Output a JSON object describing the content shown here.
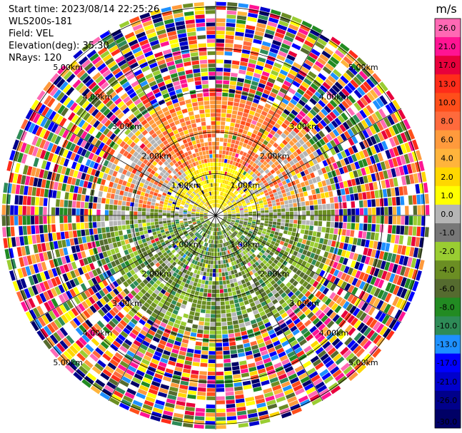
{
  "header": {
    "start_time": "Start time: 2023/08/14 22:25:26",
    "instrument": "WLS200s-181",
    "field": "Field: VEL",
    "elevation": "Elevation(deg): 35.30",
    "nrays": "NRays: 120"
  },
  "chart_data": {
    "type": "heatmap",
    "projection": "polar-ppi",
    "n_rays": 120,
    "range_rings_km": [
      1.0,
      2.0,
      3.0,
      4.0,
      5.0
    ],
    "ring_labels": [
      "1.00km",
      "2.00km",
      "3.00km",
      "4.00km",
      "5.00km"
    ],
    "radial_lines_deg": [
      0,
      30,
      60,
      90,
      120,
      150,
      180,
      210,
      240,
      270,
      300,
      330
    ],
    "colorbar": {
      "unit": "m/s",
      "vmin": -30.0,
      "vmax": 30.0,
      "tick_labels": [
        "26.0",
        "21.0",
        "17.0",
        "13.0",
        "10.0",
        "8.0",
        "6.0",
        "4.0",
        "2.0",
        "1.0",
        "0.0",
        "-1.0",
        "-2.0",
        "-4.0",
        "-6.0",
        "-8.0",
        "-10.0",
        "-13.0",
        "-17.0",
        "-21.0",
        "-26.0",
        "-30.0"
      ],
      "colors": [
        "#ff69b4",
        "#ff1493",
        "#e8003c",
        "#ff2d1a",
        "#ff4e1a",
        "#ff6a3c",
        "#ff9a3c",
        "#ffb43c",
        "#ffd700",
        "#ffff00",
        "#b5b5b5",
        "#777777",
        "#9acd32",
        "#6b8e23",
        "#556b2f",
        "#228b22",
        "#2e8b57",
        "#1e90ff",
        "#0000ff",
        "#0000cd",
        "#00008b",
        "#000066"
      ]
    }
  }
}
